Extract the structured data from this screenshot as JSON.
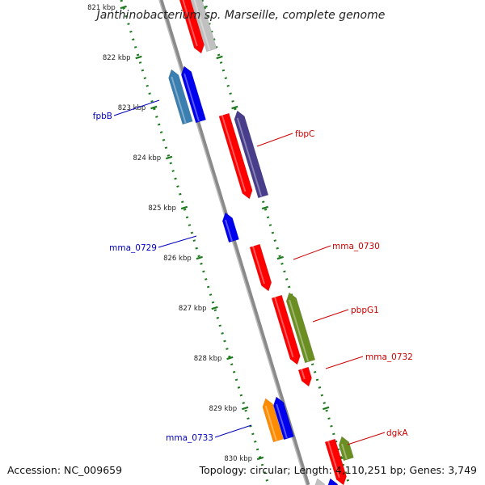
{
  "title": "Janthinobacterium sp. Marseille, complete genome",
  "footer": {
    "accession": "Accession: NC_009659",
    "summary": "Topology: circular; Length: 4,110,251 bp; Genes: 3,749"
  },
  "scale_labels": [
    "821 kbp",
    "822 kbp",
    "823 kbp",
    "824 kbp",
    "825 kbp",
    "826 kbp",
    "827 kbp",
    "828 kbp",
    "829 kbp",
    "830 kbp"
  ],
  "colors": {
    "backbone": "#8a8a8a",
    "ruler": "#1f7a1f",
    "forward_label": "#cc0000",
    "reverse_label": "#0000bb",
    "red": "#ff0000",
    "blue": "#0000ee",
    "grey": "#c0c0c0",
    "steelblue": "#3a7fb0",
    "slate": "#483d8b",
    "olive": "#6b8e23",
    "orange": "#ff8c00"
  },
  "gene_labels": [
    {
      "text": "fpbB",
      "strand": "reverse"
    },
    {
      "text": "fbpC",
      "strand": "forward"
    },
    {
      "text": "mma_0729",
      "strand": "reverse"
    },
    {
      "text": "mma_0730",
      "strand": "forward"
    },
    {
      "text": "pbpG1",
      "strand": "forward"
    },
    {
      "text": "mma_0732",
      "strand": "forward"
    },
    {
      "text": "mma_0733",
      "strand": "reverse"
    },
    {
      "text": "dgkA",
      "strand": "forward"
    }
  ]
}
